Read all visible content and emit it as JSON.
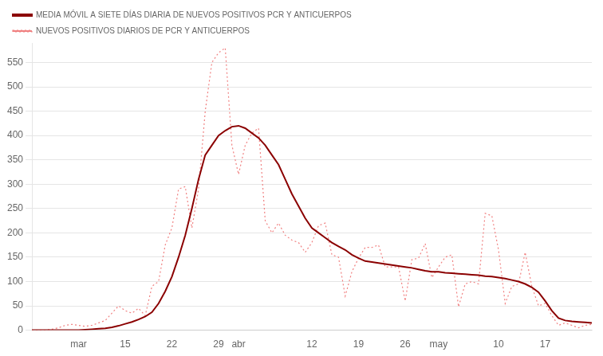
{
  "chart_data": {
    "type": "line",
    "categories": [
      null,
      null,
      null,
      null,
      null,
      null,
      null,
      "mar",
      null,
      null,
      null,
      null,
      null,
      null,
      "15",
      null,
      null,
      null,
      null,
      null,
      null,
      "22",
      null,
      null,
      null,
      null,
      null,
      null,
      "29",
      null,
      null,
      "abr",
      null,
      null,
      null,
      null,
      null,
      null,
      null,
      null,
      null,
      null,
      "12",
      null,
      null,
      null,
      null,
      null,
      null,
      "19",
      null,
      null,
      null,
      null,
      null,
      null,
      "26",
      null,
      null,
      null,
      null,
      "may",
      null,
      null,
      null,
      null,
      null,
      null,
      null,
      null,
      "10",
      null,
      null,
      null,
      null,
      null,
      null,
      "17",
      null,
      null,
      null,
      null,
      null,
      null,
      null
    ],
    "series": [
      {
        "name": "MEDIA MÓVIL A SIETE DÍAS DIARIA DE NUEVOS POSITIVOS PCR Y ANTICUERPOS",
        "color": "#8B0000",
        "line_style": "solid",
        "values": [
          0,
          0,
          0,
          0,
          0,
          0,
          0,
          0,
          1,
          2,
          3,
          4,
          6,
          9,
          13,
          17,
          22,
          28,
          37,
          55,
          80,
          110,
          150,
          195,
          250,
          310,
          360,
          380,
          400,
          410,
          418,
          420,
          415,
          405,
          395,
          380,
          360,
          340,
          310,
          280,
          255,
          230,
          210,
          200,
          190,
          180,
          172,
          165,
          155,
          148,
          142,
          140,
          138,
          136,
          134,
          132,
          130,
          128,
          125,
          122,
          120,
          120,
          118,
          117,
          116,
          115,
          114,
          113,
          111,
          110,
          108,
          106,
          103,
          100,
          95,
          88,
          78,
          60,
          40,
          25,
          20,
          18,
          17,
          16,
          15
        ]
      },
      {
        "name": "NUEVOS POSITIVOS DIARIOS DE PCR Y ANTICUERPOS",
        "color": "#F08080",
        "line_style": "dotted",
        "values": [
          0,
          0,
          0,
          2,
          5,
          10,
          12,
          10,
          8,
          10,
          15,
          20,
          35,
          50,
          40,
          35,
          45,
          30,
          90,
          100,
          175,
          210,
          290,
          295,
          210,
          290,
          450,
          550,
          570,
          580,
          380,
          320,
          380,
          405,
          415,
          225,
          200,
          220,
          195,
          185,
          180,
          160,
          180,
          215,
          220,
          155,
          150,
          70,
          120,
          148,
          170,
          170,
          175,
          130,
          130,
          130,
          60,
          145,
          148,
          178,
          108,
          130,
          150,
          155,
          48,
          95,
          100,
          95,
          240,
          235,
          165,
          55,
          90,
          95,
          160,
          90,
          50,
          55,
          30,
          10,
          15,
          10,
          5,
          10,
          12
        ]
      }
    ],
    "ylim": [
      0,
      590
    ],
    "yticks": [
      0,
      50,
      100,
      150,
      200,
      250,
      300,
      350,
      400,
      450,
      500,
      550
    ],
    "grid": true,
    "legend": "upper left"
  }
}
